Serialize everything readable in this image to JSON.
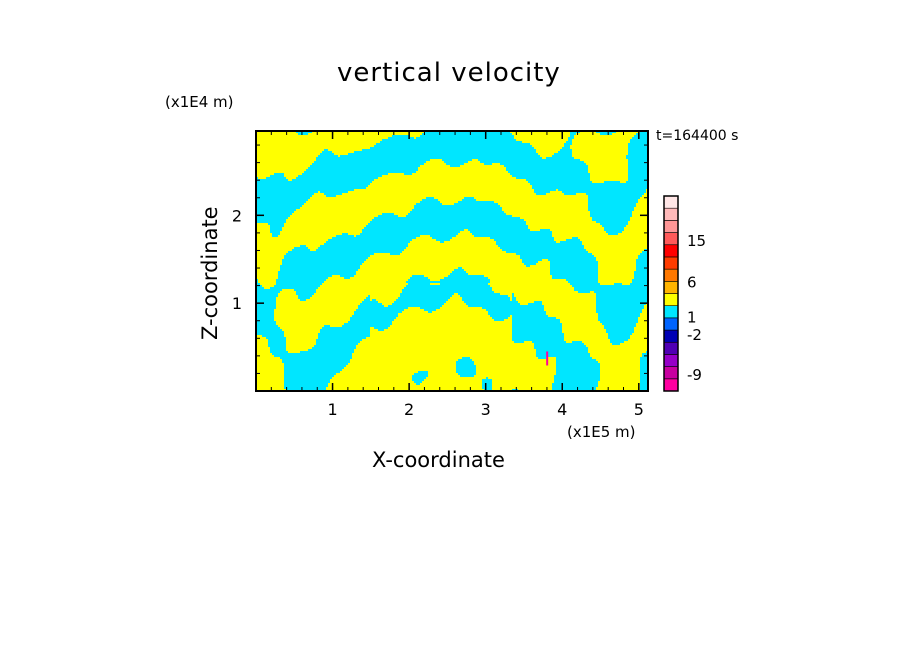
{
  "chart_data": {
    "type": "heatmap",
    "title": "vertical velocity",
    "xlabel": "X-coordinate",
    "ylabel": "Z-coordinate",
    "x_unit": "(x1E5 m)",
    "z_unit": "(x1E4 m)",
    "time_label": "t=164400 s",
    "xlim": [
      0,
      5.12
    ],
    "ylim": [
      0,
      2.96
    ],
    "xticks": [
      1,
      2,
      3,
      4,
      5
    ],
    "xtick_labels": [
      "1",
      "2",
      "3",
      "4",
      "5"
    ],
    "yticks": [
      1,
      2
    ],
    "ytick_labels": [
      "1",
      "2"
    ],
    "colorbar": {
      "colors": [
        "#ff00a0",
        "#c800a0",
        "#9600c8",
        "#5000b4",
        "#0000b4",
        "#0064ff",
        "#00e6ff",
        "#ffff00",
        "#ffb400",
        "#ff7800",
        "#ff3c00",
        "#ff0000",
        "#ff5a5a",
        "#ff9696",
        "#ffb9b9",
        "#ffe6e6"
      ],
      "tick_labels": [
        "-9",
        "-2",
        "1",
        "6",
        "15"
      ],
      "tick_levels": [
        -9,
        -2,
        1,
        6,
        15
      ]
    },
    "field_description_colors": {
      "positive": "#ffff00",
      "negative": "#00e6ff"
    }
  }
}
